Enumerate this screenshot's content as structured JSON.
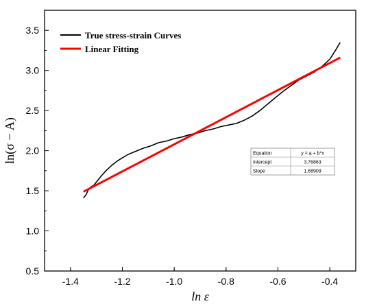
{
  "chart_data": {
    "type": "line",
    "xlabel": "ln ε",
    "ylabel": "ln(σ − A)",
    "xlim": [
      -1.5,
      -0.3
    ],
    "ylim": [
      0.5,
      3.75
    ],
    "x_ticks": [
      -1.4,
      -1.2,
      -1.0,
      -0.8,
      -0.6,
      -0.4
    ],
    "y_ticks": [
      0.5,
      1.0,
      1.5,
      2.0,
      2.5,
      3.0,
      3.5
    ],
    "legend_position": "top-left",
    "series": [
      {
        "name": "True stress-strain Curves",
        "color": "#000000",
        "points": [
          [
            -1.35,
            1.41
          ],
          [
            -1.34,
            1.45
          ],
          [
            -1.33,
            1.52
          ],
          [
            -1.32,
            1.55
          ],
          [
            -1.31,
            1.57
          ],
          [
            -1.3,
            1.61
          ],
          [
            -1.28,
            1.69
          ],
          [
            -1.26,
            1.76
          ],
          [
            -1.24,
            1.82
          ],
          [
            -1.22,
            1.87
          ],
          [
            -1.2,
            1.91
          ],
          [
            -1.18,
            1.95
          ],
          [
            -1.15,
            1.99
          ],
          [
            -1.12,
            2.03
          ],
          [
            -1.09,
            2.06
          ],
          [
            -1.06,
            2.1
          ],
          [
            -1.03,
            2.12
          ],
          [
            -1.0,
            2.15
          ],
          [
            -0.97,
            2.17
          ],
          [
            -0.94,
            2.2
          ],
          [
            -0.91,
            2.22
          ],
          [
            -0.88,
            2.25
          ],
          [
            -0.85,
            2.27
          ],
          [
            -0.82,
            2.3
          ],
          [
            -0.79,
            2.32
          ],
          [
            -0.76,
            2.34
          ],
          [
            -0.73,
            2.38
          ],
          [
            -0.7,
            2.43
          ],
          [
            -0.67,
            2.5
          ],
          [
            -0.64,
            2.58
          ],
          [
            -0.61,
            2.66
          ],
          [
            -0.58,
            2.74
          ],
          [
            -0.55,
            2.81
          ],
          [
            -0.52,
            2.88
          ],
          [
            -0.49,
            2.93
          ],
          [
            -0.46,
            2.98
          ],
          [
            -0.43,
            3.05
          ],
          [
            -0.4,
            3.14
          ],
          [
            -0.38,
            3.24
          ],
          [
            -0.36,
            3.35
          ]
        ]
      },
      {
        "name": "Linear Fitting",
        "color": "#ff0000",
        "intercept": 3.76863,
        "slope": 1.68909,
        "x_range": [
          -1.35,
          -0.36
        ]
      }
    ],
    "fit_table": {
      "rows": [
        [
          "Equation",
          "y = a + b*x"
        ],
        [
          "Intercept",
          "3.76863"
        ],
        [
          "Slope",
          "1.68909"
        ]
      ]
    }
  }
}
